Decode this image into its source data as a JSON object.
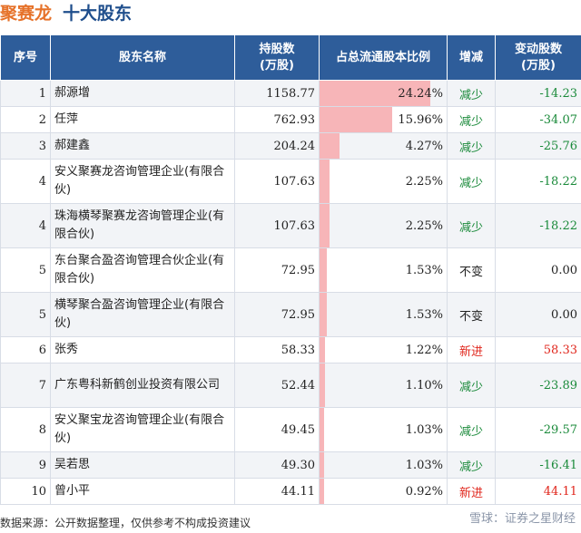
{
  "header": {
    "company": "聚赛龙",
    "section": "十大股东"
  },
  "columns": {
    "rank": "序号",
    "name": "股东名称",
    "shares_line1": "持股数",
    "shares_line2": "(万股)",
    "ratio": "占总流通股本比例",
    "change": "增减",
    "delta_line1": "变动股数",
    "delta_line2": "(万股)"
  },
  "rows": [
    {
      "rank": "1",
      "name": "郝源增",
      "shares": "1158.77",
      "ratio": "24.24%",
      "ratio_value": 24.24,
      "change": "减少",
      "change_type": "down",
      "delta": "-14.23",
      "tall": false
    },
    {
      "rank": "2",
      "name": "任萍",
      "shares": "762.93",
      "ratio": "15.96%",
      "ratio_value": 15.96,
      "change": "减少",
      "change_type": "down",
      "delta": "-34.07",
      "tall": false
    },
    {
      "rank": "3",
      "name": "郝建鑫",
      "shares": "204.24",
      "ratio": "4.27%",
      "ratio_value": 4.27,
      "change": "减少",
      "change_type": "down",
      "delta": "-25.76",
      "tall": false
    },
    {
      "rank": "4",
      "name": "安义聚赛龙咨询管理企业(有限合伙)",
      "shares": "107.63",
      "ratio": "2.25%",
      "ratio_value": 2.25,
      "change": "减少",
      "change_type": "down",
      "delta": "-18.22",
      "tall": true
    },
    {
      "rank": "4",
      "name": "珠海横琴聚赛龙咨询管理企业(有限合伙)",
      "shares": "107.63",
      "ratio": "2.25%",
      "ratio_value": 2.25,
      "change": "减少",
      "change_type": "down",
      "delta": "-18.22",
      "tall": true
    },
    {
      "rank": "5",
      "name": "东台聚合盈咨询管理合伙企业(有限合伙)",
      "shares": "72.95",
      "ratio": "1.53%",
      "ratio_value": 1.53,
      "change": "不变",
      "change_type": "same",
      "delta": "0.00",
      "tall": true
    },
    {
      "rank": "5",
      "name": "横琴聚合盈咨询管理企业(有限合伙)",
      "shares": "72.95",
      "ratio": "1.53%",
      "ratio_value": 1.53,
      "change": "不变",
      "change_type": "same",
      "delta": "0.00",
      "tall": true
    },
    {
      "rank": "6",
      "name": "张秀",
      "shares": "58.33",
      "ratio": "1.22%",
      "ratio_value": 1.22,
      "change": "新进",
      "change_type": "new",
      "delta": "58.33",
      "tall": false
    },
    {
      "rank": "7",
      "name": "广东粤科新鹤创业投资有限公司",
      "shares": "52.44",
      "ratio": "1.10%",
      "ratio_value": 1.1,
      "change": "减少",
      "change_type": "down",
      "delta": "-23.89",
      "tall": true
    },
    {
      "rank": "8",
      "name": "安义聚宝龙咨询管理企业(有限合伙)",
      "shares": "49.45",
      "ratio": "1.03%",
      "ratio_value": 1.03,
      "change": "减少",
      "change_type": "down",
      "delta": "-29.57",
      "tall": true
    },
    {
      "rank": "9",
      "name": "吴若思",
      "shares": "49.30",
      "ratio": "1.03%",
      "ratio_value": 1.03,
      "change": "减少",
      "change_type": "down",
      "delta": "-16.41",
      "tall": false
    },
    {
      "rank": "10",
      "name": "曾小平",
      "shares": "44.11",
      "ratio": "0.92%",
      "ratio_value": 0.92,
      "change": "新进",
      "change_type": "new",
      "delta": "44.11",
      "tall": false
    }
  ],
  "footer": {
    "source": "数据来源：公开数据整理，仅供参考不构成投资建议"
  },
  "watermark": {
    "text": "雪球：证券之星财经"
  },
  "colors": {
    "header_bg": "#2e5d9a",
    "bar": "#f7b5b8",
    "down": "#1a8a3a",
    "new": "#e0261c",
    "company": "#e6722a"
  }
}
